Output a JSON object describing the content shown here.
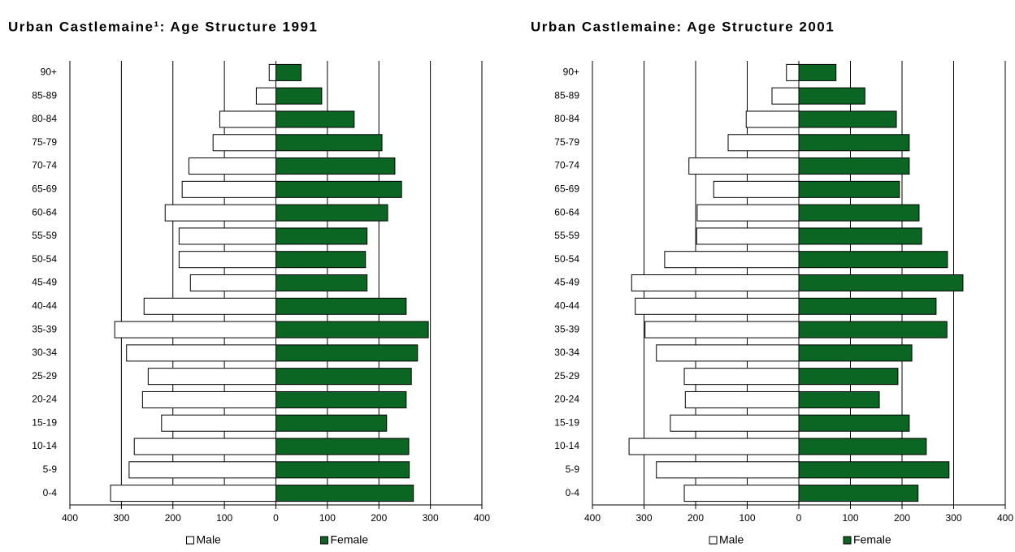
{
  "chart_data": [
    {
      "type": "bar",
      "orientation": "horizontal",
      "title": "Urban Castlemaine¹: Age Structure 1991",
      "categories": [
        "90+",
        "85-89",
        "80-84",
        "75-79",
        "70-74",
        "65-69",
        "60-64",
        "55-59",
        "50-54",
        "45-49",
        "40-44",
        "35-39",
        "30-34",
        "25-29",
        "20-24",
        "15-19",
        "10-14",
        "5-9",
        "0-4"
      ],
      "series": [
        {
          "name": "Male",
          "color": "#ffffff",
          "values": [
            -13,
            -38,
            -109,
            -122,
            -169,
            -182,
            -215,
            -188,
            -188,
            -166,
            -256,
            -313,
            -290,
            -248,
            -259,
            -222,
            -275,
            -285,
            -321
          ]
        },
        {
          "name": "Female",
          "color": "#0b6623",
          "values": [
            49,
            89,
            152,
            206,
            231,
            244,
            217,
            177,
            174,
            177,
            253,
            296,
            275,
            263,
            253,
            215,
            258,
            259,
            267
          ]
        }
      ],
      "xlim": [
        -400,
        400
      ],
      "xticks": [
        {
          "value": -400,
          "label": "400"
        },
        {
          "value": -300,
          "label": "300"
        },
        {
          "value": -200,
          "label": "200"
        },
        {
          "value": -100,
          "label": "100"
        },
        0,
        100,
        200,
        300,
        400
      ],
      "grid": true,
      "legend": "bottom"
    },
    {
      "type": "bar",
      "orientation": "horizontal",
      "title": "Urban Castlemaine: Age Structure 2001",
      "categories": [
        "90+",
        "85-89",
        "80-84",
        "75-79",
        "70-74",
        "65-69",
        "60-64",
        "55-59",
        "50-54",
        "45-49",
        "40-44",
        "35-39",
        "30-34",
        "25-29",
        "20-24",
        "15-19",
        "10-14",
        "5-9",
        "0-4"
      ],
      "series": [
        {
          "name": "Male",
          "color": "#ffffff",
          "values": [
            -24,
            -52,
            -102,
            -137,
            -213,
            -165,
            -197,
            -198,
            -260,
            -324,
            -317,
            -298,
            -276,
            -222,
            -220,
            -249,
            -329,
            -276,
            -222
          ]
        },
        {
          "name": "Female",
          "color": "#0b6623",
          "values": [
            72,
            128,
            189,
            214,
            214,
            195,
            233,
            238,
            288,
            318,
            266,
            287,
            219,
            192,
            156,
            214,
            247,
            291,
            231
          ]
        }
      ],
      "xlim": [
        -400,
        400
      ],
      "xticks": [
        {
          "value": -400,
          "label": "400"
        },
        {
          "value": -300,
          "label": "300"
        },
        {
          "value": -200,
          "label": "200"
        },
        {
          "value": -100,
          "label": "100"
        },
        0,
        100,
        200,
        300,
        400
      ],
      "grid": true,
      "legend": "bottom"
    }
  ]
}
